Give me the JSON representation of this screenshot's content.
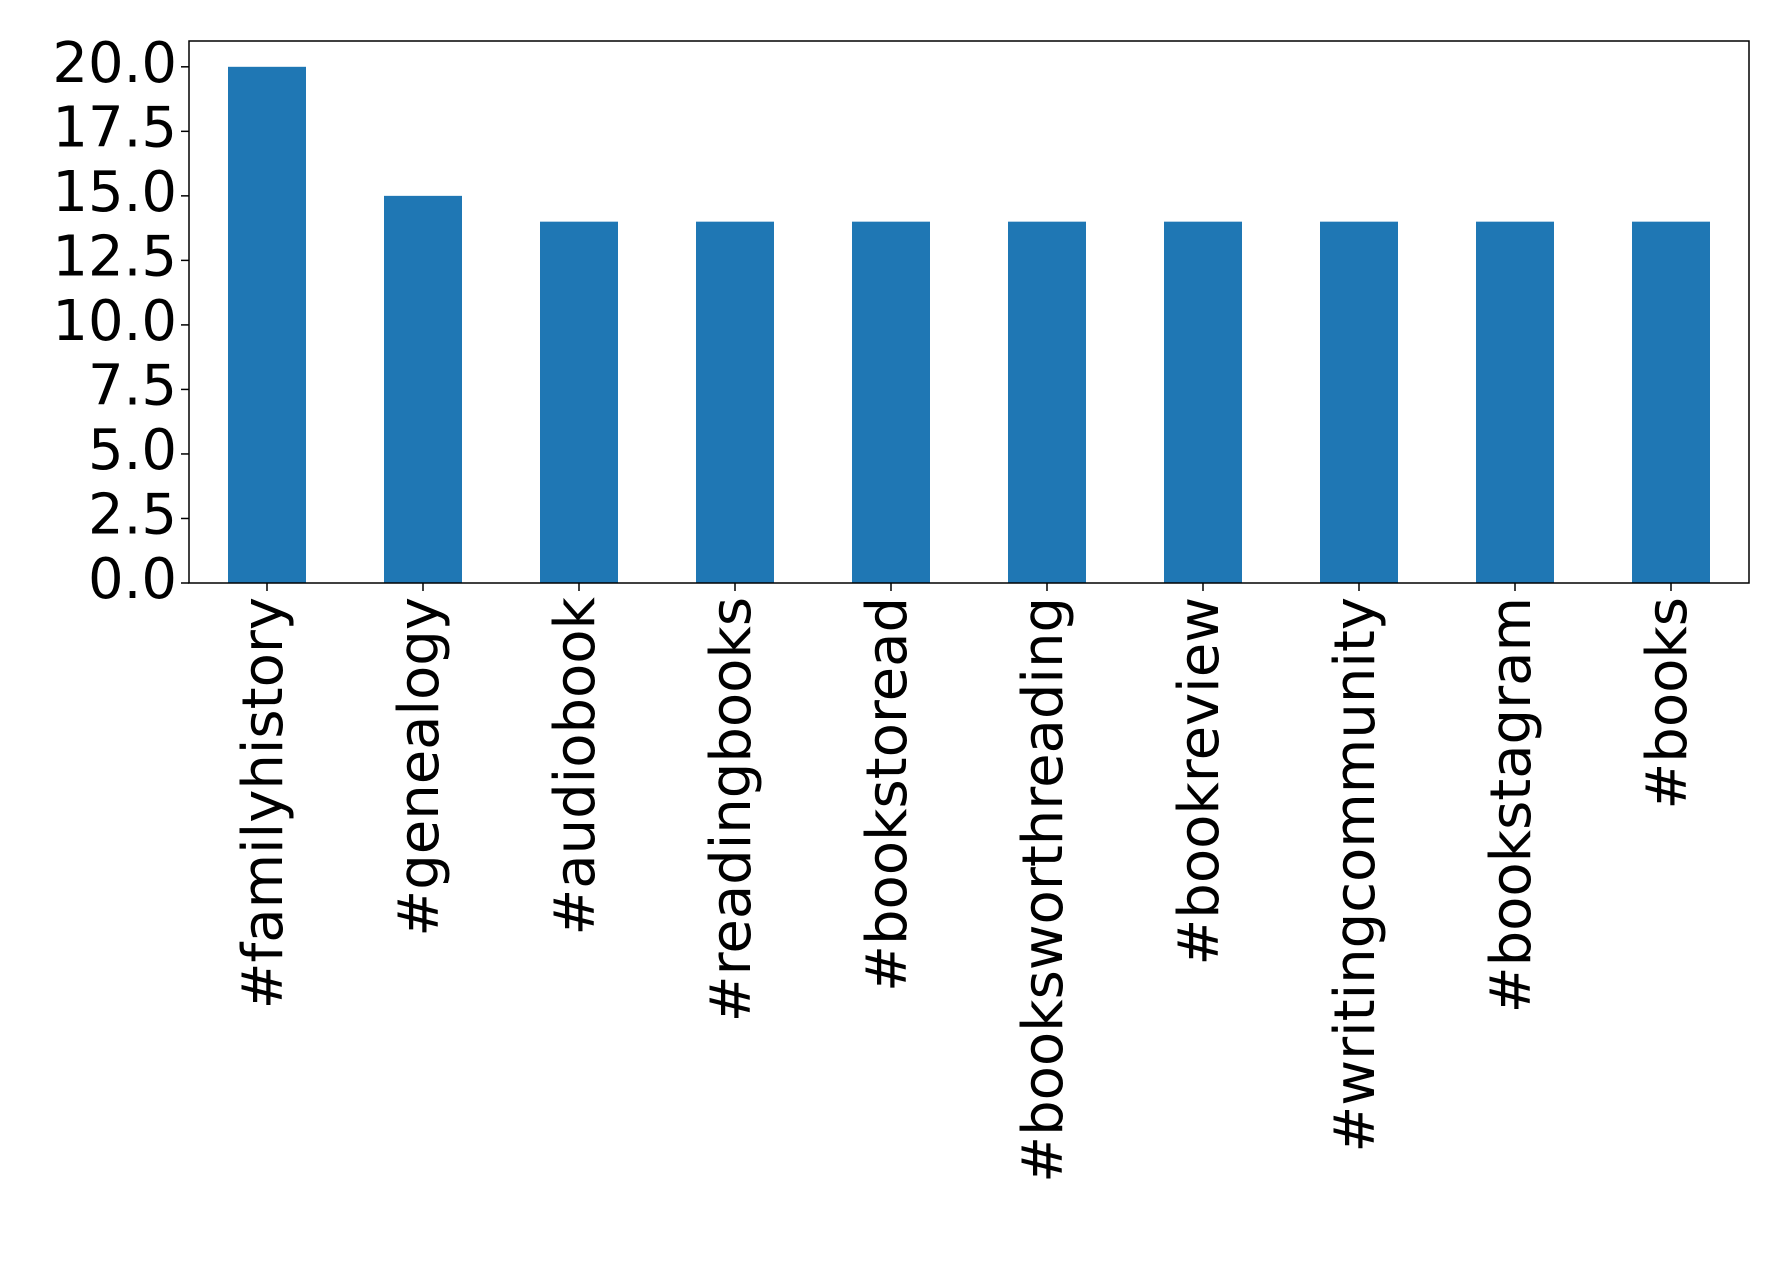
{
  "chart_data": {
    "type": "bar",
    "categories": [
      "#familyhistory",
      "#genealogy",
      "#audiobook",
      "#readingbooks",
      "#bookstoread",
      "#booksworthreading",
      "#bookreview",
      "#writingcommunity",
      "#bookstagram",
      "#books"
    ],
    "values": [
      20,
      15,
      14,
      14,
      14,
      14,
      14,
      14,
      14,
      14
    ],
    "color": "#1f77b4",
    "ylim": [
      0,
      21
    ],
    "yticks": [
      {
        "value": 0,
        "label": "0.0"
      },
      2.5,
      {
        "value": 5,
        "label": "5.0"
      },
      7.5,
      {
        "value": 10,
        "label": "10.0"
      },
      12.5,
      {
        "value": 15,
        "label": "15.0"
      },
      17.5,
      {
        "value": 20,
        "label": "20.0"
      }
    ],
    "grid": false
  }
}
